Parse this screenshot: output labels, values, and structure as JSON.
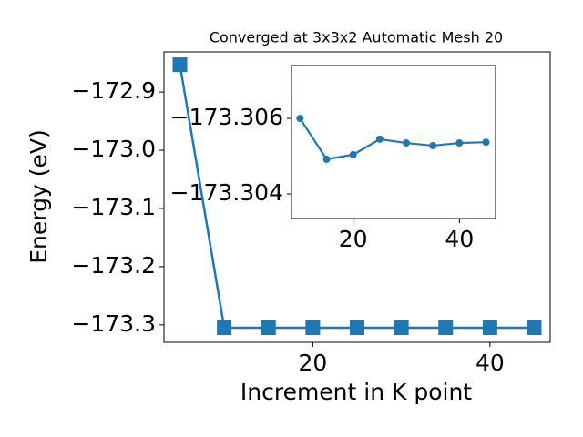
{
  "chart_data": [
    {
      "type": "line",
      "title": "Converged at 3x3x2 Automatic Mesh 20",
      "x_label": "Increment in K point",
      "y_label": "Energy (eV)",
      "x": [
        5,
        10,
        15,
        20,
        25,
        30,
        35,
        40,
        45
      ],
      "series": [
        {
          "color": "#1f77b4",
          "marker": "square",
          "values": [
            -172.853,
            -173.305,
            -173.305,
            -173.305,
            -173.305,
            -173.305,
            -173.305,
            -173.305,
            -173.305
          ]
        }
      ],
      "xlim": [
        3.2,
        46.8
      ],
      "ylim": [
        -173.33,
        -172.831
      ],
      "xticks": [
        20,
        40
      ],
      "yticks": [
        {
          "value": -172.9,
          "label": "−172.9"
        },
        {
          "value": -173.0,
          "label": "−173.0"
        },
        {
          "value": -173.1,
          "label": "−173.1"
        },
        {
          "value": -173.2,
          "label": "−173.2"
        },
        {
          "value": -173.3,
          "label": "−173.3"
        }
      ]
    },
    {
      "type": "line",
      "x": [
        10,
        15,
        20,
        25,
        30,
        35,
        40,
        45
      ],
      "series": [
        {
          "color": "#1f77b4",
          "marker": "circle",
          "values": [
            -173.306,
            -173.30492,
            -173.30504,
            -173.30545,
            -173.30535,
            -173.30528,
            -173.30535,
            -173.30537
          ]
        }
      ],
      "xlim": [
        8.4,
        46.8
      ],
      "ylim": [
        -173.30335,
        -173.3074
      ],
      "xticks": [
        20,
        40
      ],
      "yticks": [
        {
          "value": -173.306,
          "label": "−173.306"
        },
        {
          "value": -173.304,
          "label": "−173.304"
        }
      ]
    }
  ]
}
